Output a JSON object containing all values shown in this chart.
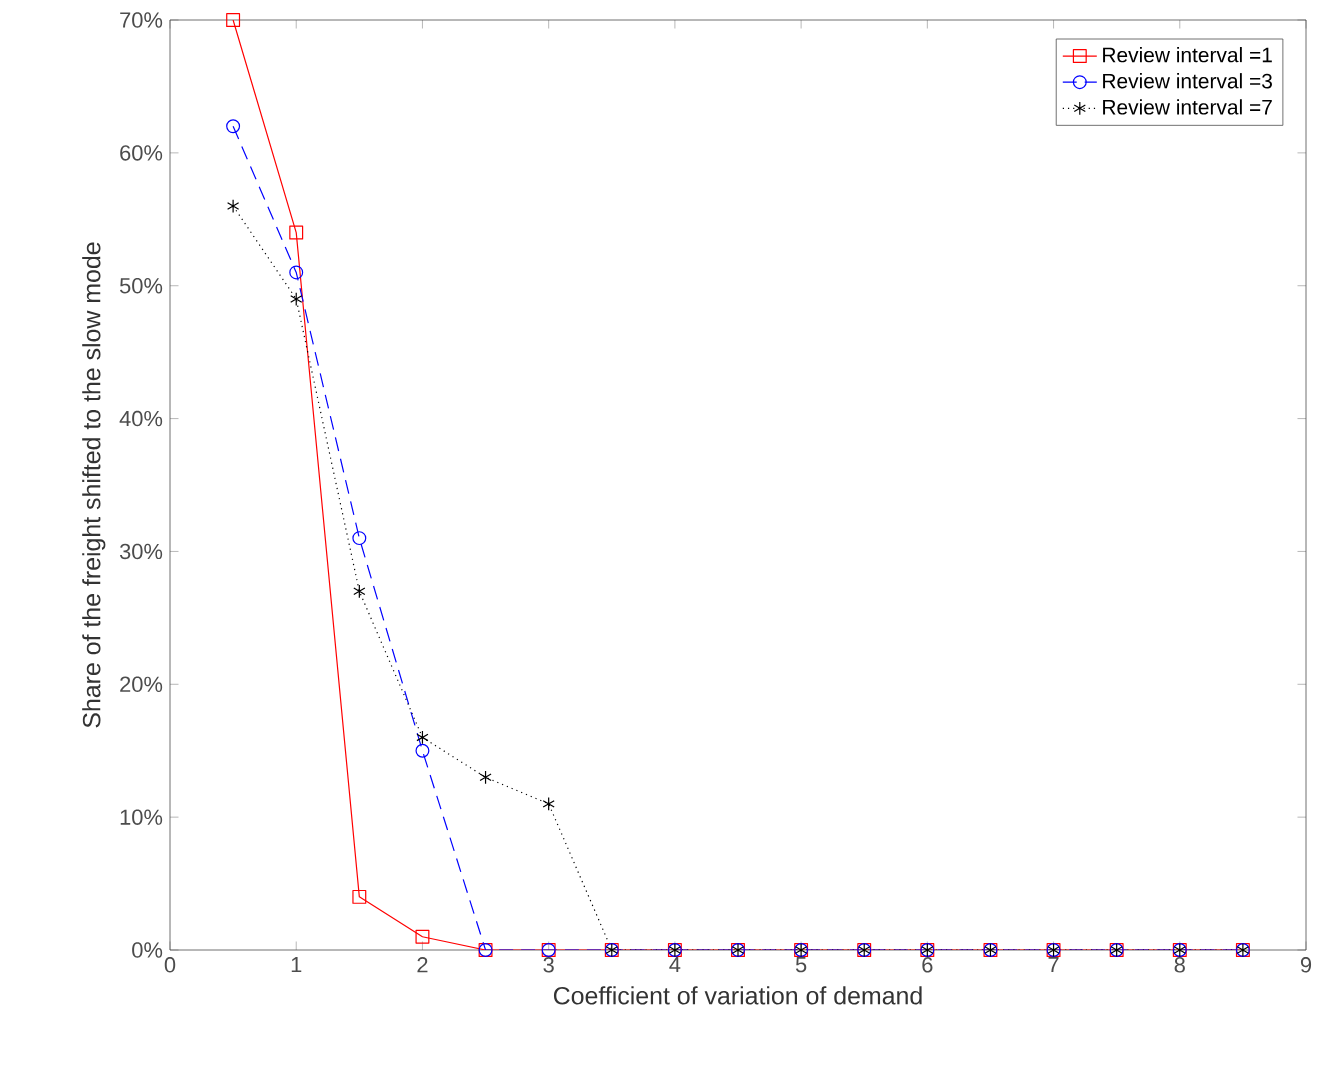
{
  "chart_data": {
    "type": "line",
    "xlabel": "Coefficient of variation of demand",
    "ylabel": "Share of the freight shifted to the slow mode",
    "x": [
      0.5,
      1,
      1.5,
      2,
      2.5,
      3,
      3.5,
      4,
      4.5,
      5,
      5.5,
      6,
      6.5,
      7,
      7.5,
      8,
      8.5
    ],
    "series": [
      {
        "name": "Review interval =1",
        "color": "#ff0000",
        "marker": "square",
        "line_style": "solid",
        "values": [
          70,
          54,
          4,
          1,
          0,
          0,
          0,
          0,
          0,
          0,
          0,
          0,
          0,
          0,
          0,
          0,
          0
        ]
      },
      {
        "name": "Review interval =3",
        "color": "#0000ff",
        "marker": "circle",
        "line_style": "dashed",
        "values": [
          62,
          51,
          31,
          15,
          0,
          0,
          0,
          0,
          0,
          0,
          0,
          0,
          0,
          0,
          0,
          0,
          0
        ]
      },
      {
        "name": "Review interval =7",
        "color": "#000000",
        "marker": "cross",
        "line_style": "dotted",
        "values": [
          56,
          49,
          27,
          16,
          13,
          11,
          0,
          0,
          0,
          0,
          0,
          0,
          0,
          0,
          0,
          0,
          0
        ]
      }
    ],
    "xlim": [
      0,
      9
    ],
    "xticks": [
      0,
      1,
      2,
      3,
      4,
      5,
      6,
      7,
      8,
      9
    ],
    "ylim": [
      0,
      70
    ],
    "yticks": [
      {
        "value": 0,
        "label": "0%"
      },
      {
        "value": 10,
        "label": "10%"
      },
      {
        "value": 20,
        "label": "20%"
      },
      {
        "value": 30,
        "label": "30%"
      },
      {
        "value": 40,
        "label": "40%"
      },
      {
        "value": 50,
        "label": "50%"
      },
      {
        "value": 60,
        "label": "60%"
      },
      {
        "value": 70,
        "label": "70%"
      }
    ],
    "legend": "top right",
    "grid": false
  }
}
